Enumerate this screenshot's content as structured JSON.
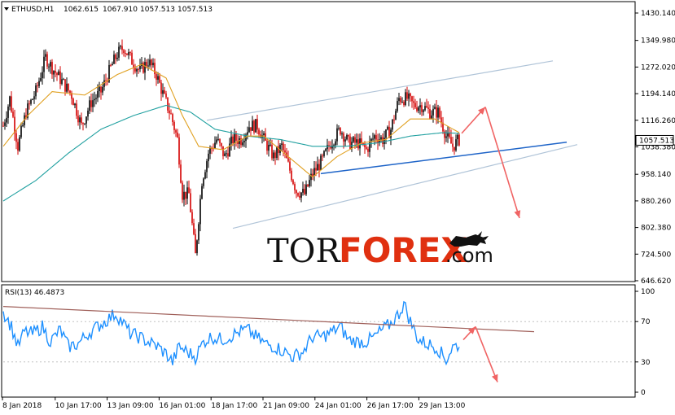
{
  "header": {
    "symbol": "ETHUSD,H1",
    "open": "1062.615",
    "high": "1067.910",
    "low": "1057.513",
    "close": "1057.513"
  },
  "rsi_header": "RSI(13) 46.4873",
  "watermark": {
    "part1": "TOR",
    "part2": "FOREX",
    "part3": ".com"
  },
  "colors": {
    "bull": "#000000",
    "bear": "#d40000",
    "ma_fast": "#e0a020",
    "ma_slow": "#20a0a0",
    "channel": "#b0c4d8",
    "support": "#1e64c8",
    "arrow": "#f06464",
    "rsi": "#1e90ff",
    "rsi_trend": "#a0605a",
    "watermark_dark": "#111111",
    "watermark_red": "#e03010"
  },
  "chart_data": [
    {
      "type": "line",
      "subtype": "candlestick",
      "title": "ETHUSD,H1",
      "y_ticks": [
        1430.14,
        1349.98,
        1272.02,
        1194.14,
        1116.26,
        1038.38,
        958.14,
        880.26,
        802.38,
        724.5,
        646.62
      ],
      "y_tick_labels": [
        "1430.140",
        "1349.980",
        "1272.020",
        "1194.140",
        "1116.260",
        "1038.380",
        "958.140",
        "880.260",
        "802.380",
        "724.500",
        "646.620"
      ],
      "ylim": [
        646.62,
        1430.14
      ],
      "current_price_label": "1057.513",
      "current_price": 1057.513,
      "x_tick_labels": [
        "8 Jan 2018",
        "10 Jan 17:00",
        "13 Jan 09:00",
        "16 Jan 01:00",
        "18 Jan 17:00",
        "21 Jan 09:00",
        "24 Jan 01:00",
        "26 Jan 17:00",
        "29 Jan 13:00"
      ],
      "price_path": [
        [
          0,
          1100
        ],
        [
          8,
          1180
        ],
        [
          18,
          1040
        ],
        [
          28,
          1140
        ],
        [
          40,
          1200
        ],
        [
          52,
          1300
        ],
        [
          60,
          1270
        ],
        [
          72,
          1230
        ],
        [
          84,
          1190
        ],
        [
          96,
          1100
        ],
        [
          108,
          1170
        ],
        [
          120,
          1200
        ],
        [
          132,
          1270
        ],
        [
          140,
          1310
        ],
        [
          148,
          1330
        ],
        [
          158,
          1290
        ],
        [
          168,
          1260
        ],
        [
          178,
          1290
        ],
        [
          188,
          1250
        ],
        [
          198,
          1180
        ],
        [
          206,
          1130
        ],
        [
          214,
          1060
        ],
        [
          220,
          900
        ],
        [
          228,
          900
        ],
        [
          236,
          720
        ],
        [
          244,
          940
        ],
        [
          252,
          1020
        ],
        [
          262,
          1060
        ],
        [
          272,
          1010
        ],
        [
          282,
          1060
        ],
        [
          292,
          1060
        ],
        [
          302,
          1100
        ],
        [
          312,
          1100
        ],
        [
          322,
          1050
        ],
        [
          332,
          1010
        ],
        [
          342,
          1040
        ],
        [
          352,
          970
        ],
        [
          360,
          910
        ],
        [
          370,
          900
        ],
        [
          380,
          960
        ],
        [
          392,
          1000
        ],
        [
          402,
          1050
        ],
        [
          414,
          1090
        ],
        [
          424,
          1050
        ],
        [
          436,
          1050
        ],
        [
          446,
          1030
        ],
        [
          456,
          1070
        ],
        [
          466,
          1060
        ],
        [
          476,
          1090
        ],
        [
          486,
          1180
        ],
        [
          496,
          1180
        ],
        [
          504,
          1160
        ],
        [
          514,
          1160
        ],
        [
          524,
          1140
        ],
        [
          534,
          1140
        ],
        [
          544,
          1070
        ],
        [
          552,
          1040
        ],
        [
          560,
          1060
        ]
      ],
      "ma_fast_path": [
        [
          0,
          1040
        ],
        [
          30,
          1130
        ],
        [
          60,
          1200
        ],
        [
          100,
          1190
        ],
        [
          140,
          1250
        ],
        [
          170,
          1280
        ],
        [
          200,
          1240
        ],
        [
          220,
          1130
        ],
        [
          240,
          1040
        ],
        [
          270,
          1030
        ],
        [
          300,
          1070
        ],
        [
          320,
          1070
        ],
        [
          350,
          1010
        ],
        [
          380,
          950
        ],
        [
          410,
          1010
        ],
        [
          440,
          1050
        ],
        [
          470,
          1060
        ],
        [
          500,
          1120
        ],
        [
          530,
          1120
        ],
        [
          560,
          1080
        ]
      ],
      "ma_slow_path": [
        [
          0,
          880
        ],
        [
          40,
          940
        ],
        [
          80,
          1020
        ],
        [
          120,
          1090
        ],
        [
          160,
          1130
        ],
        [
          200,
          1160
        ],
        [
          230,
          1140
        ],
        [
          260,
          1090
        ],
        [
          300,
          1070
        ],
        [
          340,
          1060
        ],
        [
          380,
          1040
        ],
        [
          420,
          1040
        ],
        [
          460,
          1050
        ],
        [
          500,
          1070
        ],
        [
          540,
          1080
        ],
        [
          560,
          1078
        ]
      ],
      "channel_upper": [
        [
          250,
          1116
        ],
        [
          675,
          1290
        ]
      ],
      "channel_lower": [
        [
          282,
          800
        ],
        [
          705,
          1045
        ]
      ],
      "support_line": [
        [
          390,
          960
        ],
        [
          692,
          1052
        ]
      ],
      "forecast_up": [
        [
          563,
          1078
        ],
        [
          592,
          1155
        ]
      ],
      "forecast_down": [
        [
          592,
          1155
        ],
        [
          634,
          830
        ]
      ]
    },
    {
      "type": "line",
      "title": "RSI(13) 46.4873",
      "y_ticks": [
        100,
        70,
        30,
        0
      ],
      "y_tick_labels": [
        "100",
        "70",
        "30",
        "0"
      ],
      "ylim": [
        0,
        100
      ],
      "rsi_path": [
        [
          0,
          80
        ],
        [
          10,
          65
        ],
        [
          18,
          45
        ],
        [
          26,
          60
        ],
        [
          36,
          58
        ],
        [
          48,
          65
        ],
        [
          58,
          50
        ],
        [
          70,
          62
        ],
        [
          80,
          45
        ],
        [
          92,
          48
        ],
        [
          104,
          58
        ],
        [
          116,
          65
        ],
        [
          128,
          72
        ],
        [
          138,
          78
        ],
        [
          146,
          70
        ],
        [
          156,
          58
        ],
        [
          166,
          55
        ],
        [
          178,
          50
        ],
        [
          190,
          45
        ],
        [
          200,
          38
        ],
        [
          208,
          30
        ],
        [
          216,
          45
        ],
        [
          226,
          40
        ],
        [
          236,
          35
        ],
        [
          246,
          50
        ],
        [
          256,
          55
        ],
        [
          268,
          52
        ],
        [
          278,
          55
        ],
        [
          290,
          60
        ],
        [
          300,
          62
        ],
        [
          310,
          55
        ],
        [
          322,
          48
        ],
        [
          334,
          45
        ],
        [
          346,
          40
        ],
        [
          356,
          35
        ],
        [
          368,
          40
        ],
        [
          380,
          55
        ],
        [
          392,
          55
        ],
        [
          404,
          60
        ],
        [
          414,
          65
        ],
        [
          424,
          52
        ],
        [
          436,
          50
        ],
        [
          446,
          50
        ],
        [
          456,
          55
        ],
        [
          466,
          62
        ],
        [
          476,
          68
        ],
        [
          486,
          78
        ],
        [
          492,
          88
        ],
        [
          500,
          70
        ],
        [
          510,
          52
        ],
        [
          520,
          48
        ],
        [
          532,
          45
        ],
        [
          544,
          32
        ],
        [
          552,
          45
        ],
        [
          560,
          47
        ]
      ],
      "trend_line": [
        [
          0,
          85
        ],
        [
          652,
          60
        ]
      ],
      "forecast_up": [
        [
          565,
          52
        ],
        [
          580,
          65
        ]
      ],
      "forecast_down": [
        [
          580,
          65
        ],
        [
          607,
          10
        ]
      ]
    }
  ]
}
